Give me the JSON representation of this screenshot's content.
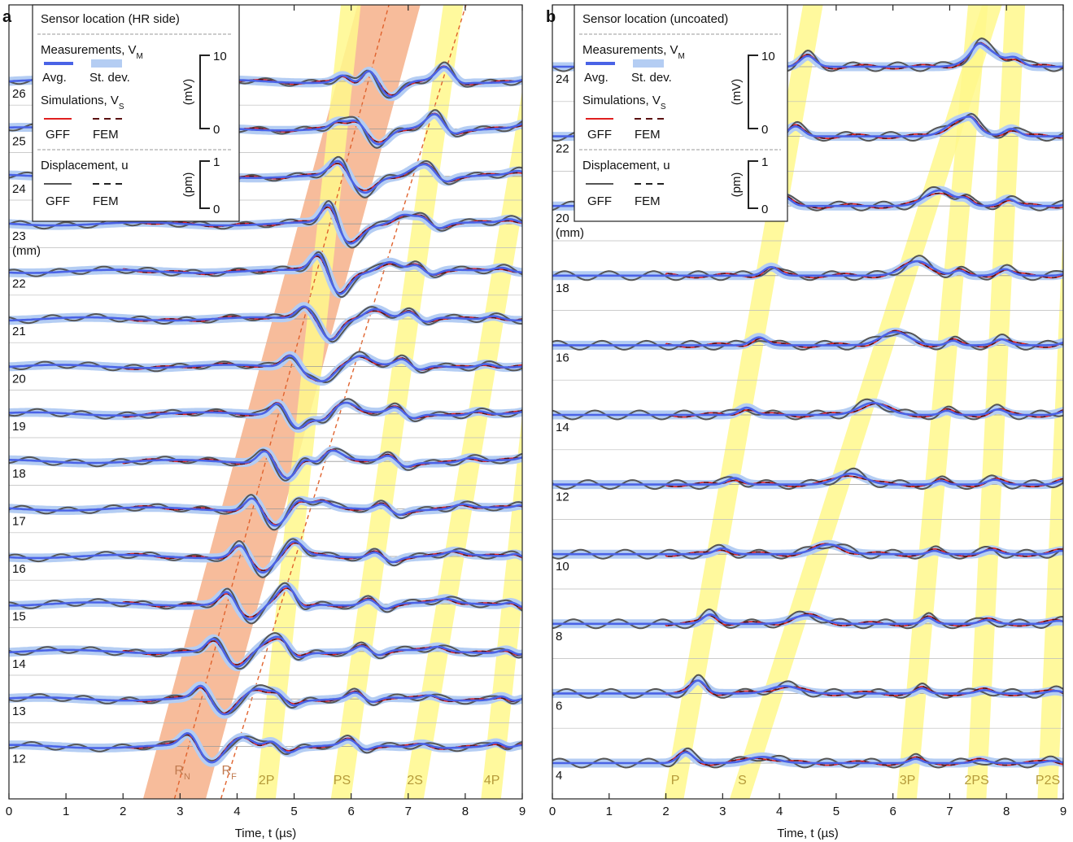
{
  "chart_data": [
    {
      "type": "line",
      "panel_label": "a",
      "xlabel": "Time, t (µs)",
      "xlim": [
        0,
        9
      ],
      "xticks": [
        "0",
        "1",
        "2",
        "3",
        "4",
        "5",
        "6",
        "7",
        "8",
        "9"
      ],
      "offset_unit": "(mm)",
      "offset_labels": [
        "26",
        "25",
        "24",
        "23",
        "22",
        "21",
        "20",
        "19",
        "18",
        "17",
        "16",
        "15",
        "14",
        "13",
        "12"
      ],
      "offsets_mm": [
        26,
        25,
        24,
        23,
        22,
        21,
        20,
        19,
        18,
        17,
        16,
        15,
        14,
        13,
        12
      ],
      "wave_bands": [
        {
          "label": "",
          "t12": 3.15,
          "t26": 6.3,
          "width": 1.1,
          "color": "#f6b089"
        },
        {
          "label": "R_N",
          "t12": 3.15,
          "t26": 6.3,
          "width": 0,
          "color": "#f6b089"
        },
        {
          "label": "R_F",
          "t12": 4.0,
          "t26": 7.6,
          "width": 0,
          "color": "#f6b089"
        },
        {
          "label": "2P",
          "t12": 4.6,
          "t26": 5.85,
          "width": 0.35,
          "color": "#fff88c"
        },
        {
          "label": "PS",
          "t12": 5.95,
          "t26": 7.6,
          "width": 0.35,
          "color": "#fff88c"
        },
        {
          "label": "2S",
          "t12": 7.25,
          "t26": 9.2,
          "width": 0.35,
          "color": "#fff88c"
        },
        {
          "label": "4P",
          "t12": 8.55,
          "t26": 9.8,
          "width": 0.35,
          "color": "#fff88c"
        }
      ],
      "legend": {
        "title": "Sensor location (HR side)",
        "measurements": "Measurements, V",
        "measurements_sub": "M",
        "avg": "Avg.",
        "stdev": "St. dev.",
        "simulations": "Simulations, V",
        "simulations_sub": "S",
        "gff": "GFF",
        "fem": "FEM",
        "displacement": "Displacement, u",
        "voltage_scale": {
          "unit": "(mV)",
          "top": "10",
          "bottom": "0"
        },
        "displacement_scale": {
          "unit": "(pm)",
          "top": "1",
          "bottom": "0"
        }
      }
    },
    {
      "type": "line",
      "panel_label": "b",
      "xlabel": "Time, t (µs)",
      "xlim": [
        0,
        9
      ],
      "xticks": [
        "0",
        "1",
        "2",
        "3",
        "4",
        "5",
        "6",
        "7",
        "8",
        "9"
      ],
      "offset_unit": "(mm)",
      "offset_labels": [
        "24",
        "22",
        "20",
        "18",
        "16",
        "14",
        "12",
        "10",
        "8",
        "6",
        "4"
      ],
      "offsets_mm": [
        24,
        22,
        20,
        18,
        16,
        14,
        12,
        10,
        8,
        6,
        4
      ],
      "wave_bands": [
        {
          "label": "P",
          "t4": 2.25,
          "t24": 4.4,
          "width": 0.35,
          "color": "#fff88c"
        },
        {
          "label": "S",
          "t4": 3.5,
          "t24": 7.4,
          "width": 0.35,
          "color": "#fff88c"
        },
        {
          "label": "3P",
          "t4": 6.3,
          "t24": 7.4,
          "width": 0.35,
          "color": "#fff88c"
        },
        {
          "label": "2PS",
          "t4": 7.5,
          "t24": 8.1,
          "width": 0.35,
          "color": "#fff88c"
        },
        {
          "label": "P2S",
          "t4": 8.75,
          "t24": 9.3,
          "width": 0.35,
          "color": "#fff88c"
        }
      ],
      "legend": {
        "title": "Sensor location (uncoated)",
        "measurements": "Measurements, V",
        "measurements_sub": "M",
        "avg": "Avg.",
        "stdev": "St. dev.",
        "simulations": "Simulations, V",
        "simulations_sub": "S",
        "gff": "GFF",
        "fem": "FEM",
        "displacement": "Displacement, u",
        "voltage_scale": {
          "unit": "(mV)",
          "top": "10",
          "bottom": "0"
        },
        "displacement_scale": {
          "unit": "(pm)",
          "top": "1",
          "bottom": "0"
        }
      }
    }
  ],
  "colors": {
    "avg": "#4a63e6",
    "stdev": "#b4cdf3",
    "gff_sim": "#e02020",
    "fem_sim": "#5a1010",
    "disp": "#555555",
    "yellow_band": "#fff88c",
    "orange_band": "#f6b089",
    "overlap_band": "#ffc94f",
    "reference_line": "#999999"
  }
}
